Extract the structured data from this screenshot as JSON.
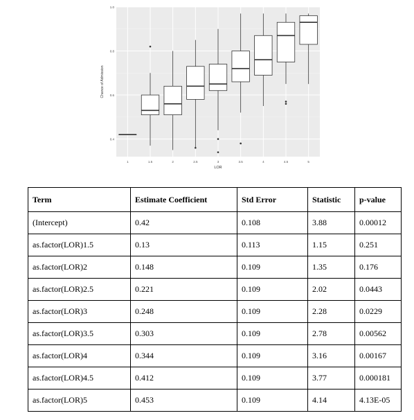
{
  "chart_data": {
    "type": "box",
    "title": "",
    "xlabel": "LOR",
    "ylabel": "Chance of Admission",
    "categories": [
      "1",
      "1.5",
      "2",
      "2.5",
      "3",
      "3.5",
      "4",
      "4.5",
      "5"
    ],
    "yticks": [
      "0.4",
      "0.6",
      "0.8",
      "1.0"
    ],
    "ylim": [
      0.32,
      1.0
    ],
    "grid": true,
    "legend": "none",
    "boxes": [
      {
        "x": "1",
        "min": 0.42,
        "q1": 0.42,
        "median": 0.42,
        "q3": 0.42,
        "max": 0.42,
        "outliers": []
      },
      {
        "x": "1.5",
        "min": 0.37,
        "q1": 0.51,
        "median": 0.53,
        "q3": 0.6,
        "max": 0.7,
        "outliers": [
          0.82
        ]
      },
      {
        "x": "2",
        "min": 0.35,
        "q1": 0.51,
        "median": 0.56,
        "q3": 0.64,
        "max": 0.8,
        "outliers": []
      },
      {
        "x": "2.5",
        "min": 0.36,
        "q1": 0.58,
        "median": 0.64,
        "q3": 0.73,
        "max": 0.85,
        "outliers": [
          0.36
        ]
      },
      {
        "x": "3",
        "min": 0.44,
        "q1": 0.62,
        "median": 0.65,
        "q3": 0.74,
        "max": 0.9,
        "outliers": [
          0.34,
          0.4
        ]
      },
      {
        "x": "3.5",
        "min": 0.52,
        "q1": 0.66,
        "median": 0.72,
        "q3": 0.8,
        "max": 0.97,
        "outliers": [
          0.38
        ]
      },
      {
        "x": "4",
        "min": 0.55,
        "q1": 0.69,
        "median": 0.76,
        "q3": 0.87,
        "max": 0.97,
        "outliers": []
      },
      {
        "x": "4.5",
        "min": 0.65,
        "q1": 0.75,
        "median": 0.87,
        "q3": 0.93,
        "max": 0.97,
        "outliers": [
          0.56,
          0.57
        ]
      },
      {
        "x": "5",
        "min": 0.65,
        "q1": 0.83,
        "median": 0.93,
        "q3": 0.96,
        "max": 0.97,
        "outliers": []
      }
    ]
  },
  "table": {
    "headers": [
      "Term",
      "Estimate Coefficient",
      "Std Error",
      "Statistic",
      "p-value"
    ],
    "rows": [
      [
        "(Intercept)",
        "0.42",
        "0.108",
        "3.88",
        "0.00012"
      ],
      [
        "as.factor(LOR)1.5",
        "0.13",
        "0.113",
        "1.15",
        "0.251"
      ],
      [
        "as.factor(LOR)2",
        "0.148",
        "0.109",
        "1.35",
        "0.176"
      ],
      [
        "as.factor(LOR)2.5",
        "0.221",
        "0.109",
        "2.02",
        "0.0443"
      ],
      [
        "as.factor(LOR)3",
        "0.248",
        "0.109",
        "2.28",
        "0.0229"
      ],
      [
        "as.factor(LOR)3.5",
        "0.303",
        "0.109",
        "2.78",
        "0.00562"
      ],
      [
        "as.factor(LOR)4",
        "0.344",
        "0.109",
        "3.16",
        "0.00167"
      ],
      [
        "as.factor(LOR)4.5",
        "0.412",
        "0.109",
        "3.77",
        "0.000181"
      ],
      [
        "as.factor(LOR)5",
        "0.453",
        "0.109",
        "4.14",
        "4.13E-05"
      ]
    ]
  }
}
